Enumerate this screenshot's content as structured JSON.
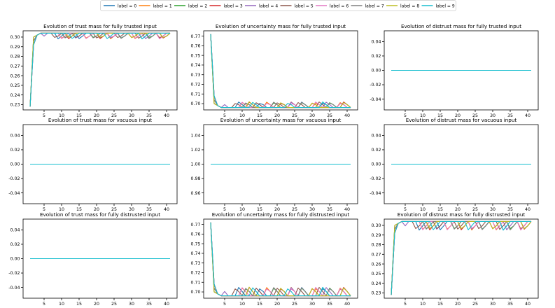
{
  "colors": [
    "#1f77b4",
    "#ff7f0e",
    "#2ca02c",
    "#d62728",
    "#9467bd",
    "#8c564b",
    "#e377c2",
    "#7f7f7f",
    "#bcbd22",
    "#17becf"
  ],
  "legend": {
    "location": "top-center",
    "entries": [
      "label = 0",
      "label = 1",
      "label = 2",
      "label = 3",
      "label = 4",
      "label = 5",
      "label = 6",
      "label = 7",
      "label = 8",
      "label = 9"
    ]
  },
  "chart_data": [
    {
      "type": "line",
      "title": "Evolution of trust mass for fully trusted input",
      "pattern": "rise",
      "x": [
        1,
        41
      ],
      "xlim": [
        -1,
        43
      ],
      "ylim": [
        0.2245,
        0.3065
      ],
      "xticks": [
        5,
        10,
        15,
        20,
        25,
        30,
        35,
        40
      ],
      "yticks": [
        0.23,
        0.24,
        0.25,
        0.26,
        0.27,
        0.28,
        0.29,
        0.3
      ],
      "yticklabels": [
        "0.23",
        "0.24",
        "0.25",
        "0.26",
        "0.27",
        "0.28",
        "0.29",
        "0.30"
      ],
      "start_value": 0.228,
      "steady_value": 0.304,
      "oscillation_min": 0.298
    },
    {
      "type": "line",
      "title": "Evolution of uncertainty mass for fully trusted input",
      "pattern": "decay",
      "x": [
        1,
        41
      ],
      "xlim": [
        -1,
        43
      ],
      "ylim": [
        0.6935,
        0.7755
      ],
      "xticks": [
        5,
        10,
        15,
        20,
        25,
        30,
        35,
        40
      ],
      "yticks": [
        0.7,
        0.71,
        0.72,
        0.73,
        0.74,
        0.75,
        0.76,
        0.77
      ],
      "yticklabels": [
        "0.70",
        "0.71",
        "0.72",
        "0.73",
        "0.74",
        "0.75",
        "0.76",
        "0.77"
      ],
      "start_value": 0.772,
      "steady_value": 0.696,
      "oscillation_max": 0.702
    },
    {
      "type": "line",
      "title": "Evolution of distrust mass for fully trusted input",
      "pattern": "flat",
      "x": [
        1,
        41
      ],
      "xlim": [
        -1,
        43
      ],
      "ylim": [
        -0.055,
        0.055
      ],
      "xticks": [
        5,
        10,
        15,
        20,
        25,
        30,
        35,
        40
      ],
      "yticks": [
        -0.04,
        -0.02,
        0.0,
        0.02,
        0.04
      ],
      "yticklabels": [
        "-0.04",
        "-0.02",
        "0.00",
        "0.02",
        "0.04"
      ],
      "value": 0.0
    },
    {
      "type": "line",
      "title": "Evolution of trust mass for vacuous input",
      "pattern": "flat",
      "x": [
        1,
        41
      ],
      "xlim": [
        -1,
        43
      ],
      "ylim": [
        -0.055,
        0.055
      ],
      "xticks": [
        5,
        10,
        15,
        20,
        25,
        30,
        35,
        40
      ],
      "yticks": [
        -0.04,
        -0.02,
        0.0,
        0.02,
        0.04
      ],
      "yticklabels": [
        "-0.04",
        "-0.02",
        "0.00",
        "0.02",
        "0.04"
      ],
      "value": 0.0
    },
    {
      "type": "line",
      "title": "Evolution of uncertainty mass for vacuous input",
      "pattern": "flat",
      "x": [
        1,
        41
      ],
      "xlim": [
        -1,
        43
      ],
      "ylim": [
        0.945,
        1.055
      ],
      "xticks": [
        5,
        10,
        15,
        20,
        25,
        30,
        35,
        40
      ],
      "yticks": [
        0.96,
        0.98,
        1.0,
        1.02,
        1.04
      ],
      "yticklabels": [
        "0.96",
        "0.98",
        "1.00",
        "1.02",
        "1.04"
      ],
      "value": 1.0
    },
    {
      "type": "line",
      "title": "Evolution of distrust mass for vacuous input",
      "pattern": "flat",
      "x": [
        1,
        41
      ],
      "xlim": [
        -1,
        43
      ],
      "ylim": [
        -0.055,
        0.055
      ],
      "xticks": [
        5,
        10,
        15,
        20,
        25,
        30,
        35,
        40
      ],
      "yticks": [
        -0.04,
        -0.02,
        0.0,
        0.02,
        0.04
      ],
      "yticklabels": [
        "-0.04",
        "-0.02",
        "0.00",
        "0.02",
        "0.04"
      ],
      "value": 0.0
    },
    {
      "type": "line",
      "title": "Evolution of trust mass for fully distrusted input",
      "pattern": "flat",
      "x": [
        1,
        41
      ],
      "xlim": [
        -1,
        43
      ],
      "ylim": [
        -0.055,
        0.055
      ],
      "xticks": [
        5,
        10,
        15,
        20,
        25,
        30,
        35,
        40
      ],
      "yticks": [
        -0.04,
        -0.02,
        0.0,
        0.02,
        0.04
      ],
      "yticklabels": [
        "-0.04",
        "-0.02",
        "0.00",
        "0.02",
        "0.04"
      ],
      "value": 0.0
    },
    {
      "type": "line",
      "title": "Evolution of uncertainty mass for fully distrusted input",
      "pattern": "decay",
      "x": [
        1,
        41
      ],
      "xlim": [
        -1,
        43
      ],
      "ylim": [
        0.6935,
        0.7755
      ],
      "xticks": [
        5,
        10,
        15,
        20,
        25,
        30,
        35,
        40
      ],
      "yticks": [
        0.7,
        0.71,
        0.72,
        0.73,
        0.74,
        0.75,
        0.76,
        0.77
      ],
      "yticklabels": [
        "0.70",
        "0.71",
        "0.72",
        "0.73",
        "0.74",
        "0.75",
        "0.76",
        "0.77"
      ],
      "start_value": 0.772,
      "steady_value": 0.696,
      "oscillation_max": 0.705
    },
    {
      "type": "line",
      "title": "Evolution of distrust mass for fully distrusted input",
      "pattern": "rise",
      "x": [
        1,
        41
      ],
      "xlim": [
        -1,
        43
      ],
      "ylim": [
        0.2245,
        0.3065
      ],
      "xticks": [
        5,
        10,
        15,
        20,
        25,
        30,
        35,
        40
      ],
      "yticks": [
        0.23,
        0.24,
        0.25,
        0.26,
        0.27,
        0.28,
        0.29,
        0.3
      ],
      "yticklabels": [
        "0.23",
        "0.24",
        "0.25",
        "0.26",
        "0.27",
        "0.28",
        "0.29",
        "0.30"
      ],
      "start_value": 0.228,
      "steady_value": 0.304,
      "oscillation_min": 0.295
    }
  ]
}
